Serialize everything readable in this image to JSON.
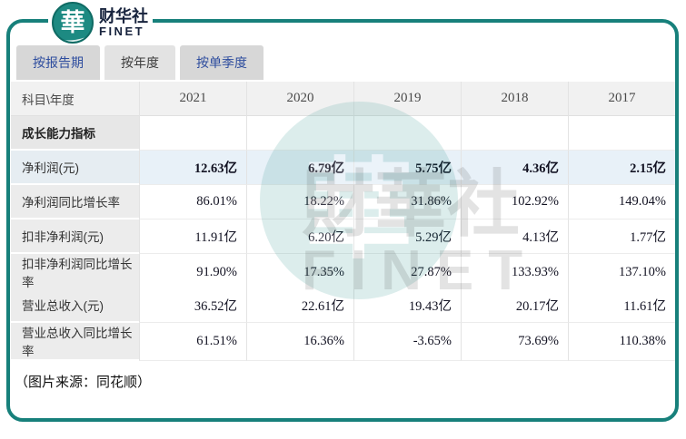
{
  "logo": {
    "glyph": "華",
    "brand_cn": "财华社",
    "brand_en": "FINET"
  },
  "tabs": [
    {
      "label": "按报告期",
      "active": false
    },
    {
      "label": "按年度",
      "active": true
    },
    {
      "label": "按单季度",
      "active": false
    }
  ],
  "table": {
    "header": [
      "科目\\年度",
      "2021",
      "2020",
      "2019",
      "2018",
      "2017"
    ],
    "section_label": "成长能力指标",
    "rows": [
      {
        "label": "净利润(元)",
        "values": [
          "12.63亿",
          "6.79亿",
          "5.75亿",
          "4.36亿",
          "2.15亿"
        ],
        "highlight": true
      },
      {
        "label": "净利润同比增长率",
        "values": [
          "86.01%",
          "18.22%",
          "31.86%",
          "102.92%",
          "149.04%"
        ],
        "highlight": false
      },
      {
        "label": "扣非净利润(元)",
        "values": [
          "11.91亿",
          "6.20亿",
          "5.29亿",
          "4.13亿",
          "1.77亿"
        ],
        "highlight": false
      },
      {
        "label": "扣非净利润同比增长率",
        "values": [
          "91.90%",
          "17.35%",
          "27.87%",
          "133.93%",
          "137.10%"
        ],
        "highlight": false
      },
      {
        "label": "营业总收入(元)",
        "values": [
          "36.52亿",
          "22.61亿",
          "19.43亿",
          "20.17亿",
          "11.61亿"
        ],
        "highlight": false
      },
      {
        "label": "营业总收入同比增长率",
        "values": [
          "61.51%",
          "16.36%",
          "-3.65%",
          "73.69%",
          "110.38%"
        ],
        "highlight": false
      }
    ]
  },
  "watermark": {
    "glyph": "華",
    "text_cn": "財華社",
    "text_en": "FINET"
  },
  "caption": "（图片来源：同花顺）",
  "colors": {
    "teal_frame": "#17807b",
    "logo_teal": "#1d8a82",
    "tab_text_blue": "#2e4d9e",
    "highlight_row": "#e8f1f8"
  }
}
